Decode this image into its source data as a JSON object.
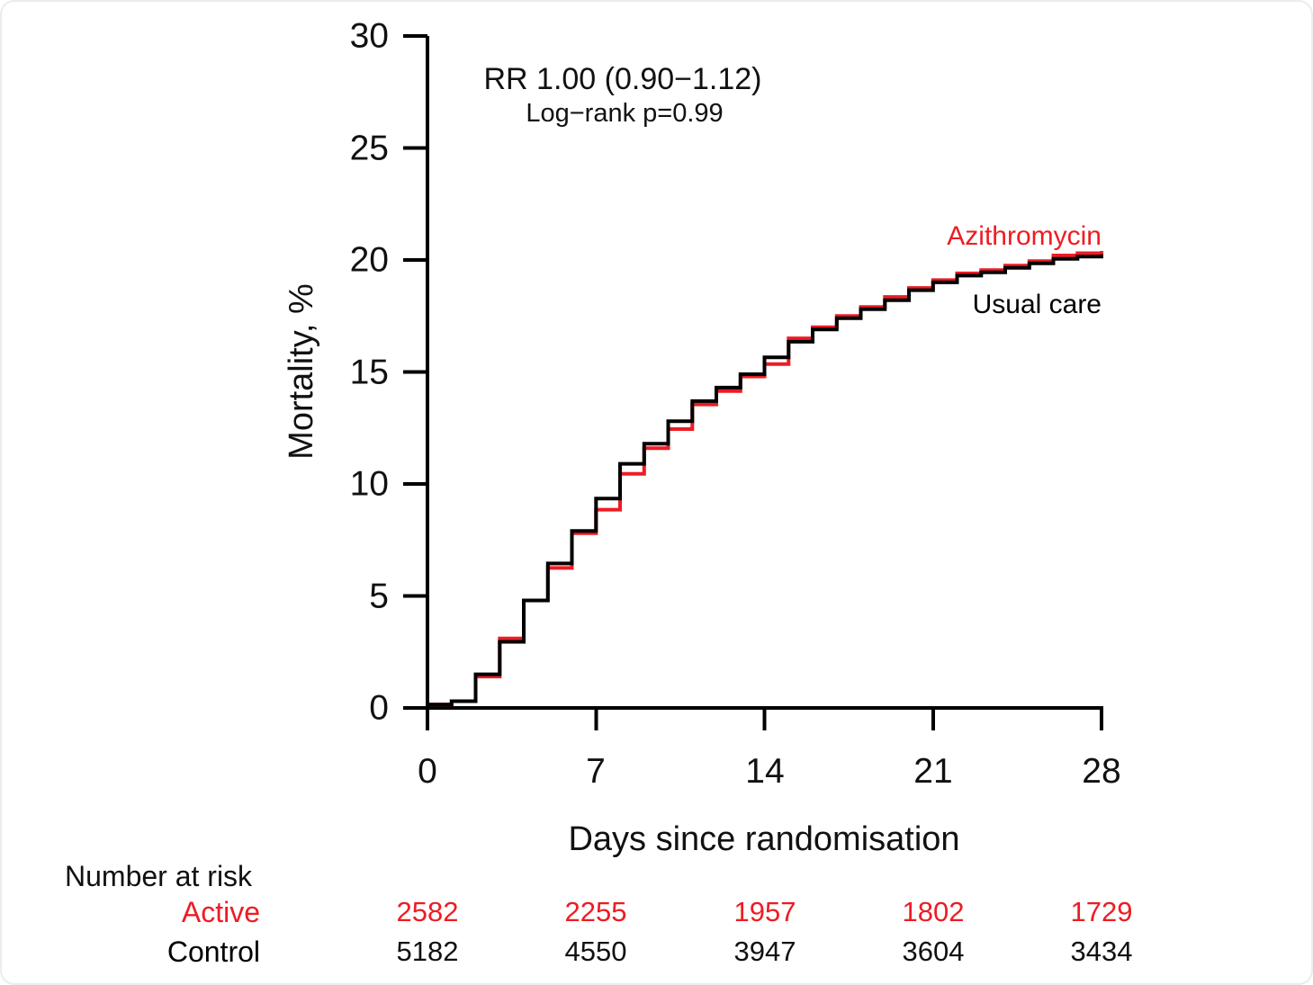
{
  "colors": {
    "active_red": "#ed1c24",
    "control_black": "#000000",
    "axis_black": "#000000"
  },
  "chart_data": {
    "type": "line",
    "subtype": "kaplan-meier-cumulative-mortality-step",
    "title": "",
    "annotation": {
      "line1": "RR 1.00 (0.90−1.12)",
      "line2": "Log−rank p=0.99"
    },
    "xlabel": "Days since randomisation",
    "ylabel": "Mortality, %",
    "xlim": [
      0,
      28
    ],
    "ylim": [
      0,
      30
    ],
    "grid": false,
    "legend_position": "right-of-curve-end",
    "xticks": [
      "0",
      "7",
      "14",
      "21",
      "28"
    ],
    "yticks": [
      "0",
      "5",
      "10",
      "15",
      "20",
      "25",
      "30"
    ],
    "x": [
      0,
      1,
      2,
      3,
      4,
      5,
      6,
      7,
      8,
      9,
      10,
      11,
      12,
      13,
      14,
      15,
      16,
      17,
      18,
      19,
      20,
      21,
      22,
      23,
      24,
      25,
      26,
      27,
      28
    ],
    "series": [
      {
        "name": "Azithromycin",
        "color": "#ed1c24",
        "values": [
          0.15,
          0.3,
          1.4,
          3.1,
          4.8,
          6.25,
          7.8,
          8.85,
          10.45,
          11.6,
          12.45,
          13.55,
          14.15,
          14.8,
          15.35,
          16.5,
          17.0,
          17.5,
          17.9,
          18.35,
          18.75,
          19.1,
          19.4,
          19.55,
          19.75,
          19.95,
          20.2,
          20.3,
          20.4
        ]
      },
      {
        "name": "Usual care",
        "color": "#000000",
        "values": [
          0.15,
          0.3,
          1.5,
          2.95,
          4.8,
          6.45,
          7.9,
          9.35,
          10.9,
          11.8,
          12.8,
          13.7,
          14.3,
          14.9,
          15.65,
          16.35,
          16.9,
          17.4,
          17.8,
          18.2,
          18.65,
          19.0,
          19.3,
          19.45,
          19.65,
          19.85,
          20.05,
          20.15,
          20.25
        ]
      }
    ],
    "risk_table": {
      "title": "Number at risk",
      "columns_days": [
        "0",
        "7",
        "14",
        "21",
        "28"
      ],
      "rows": [
        {
          "label": "Active",
          "color": "#ed1c24",
          "values": [
            "2582",
            "2255",
            "1957",
            "1802",
            "1729"
          ]
        },
        {
          "label": "Control",
          "color": "#000000",
          "values": [
            "5182",
            "4550",
            "3947",
            "3604",
            "3434"
          ]
        }
      ]
    }
  }
}
